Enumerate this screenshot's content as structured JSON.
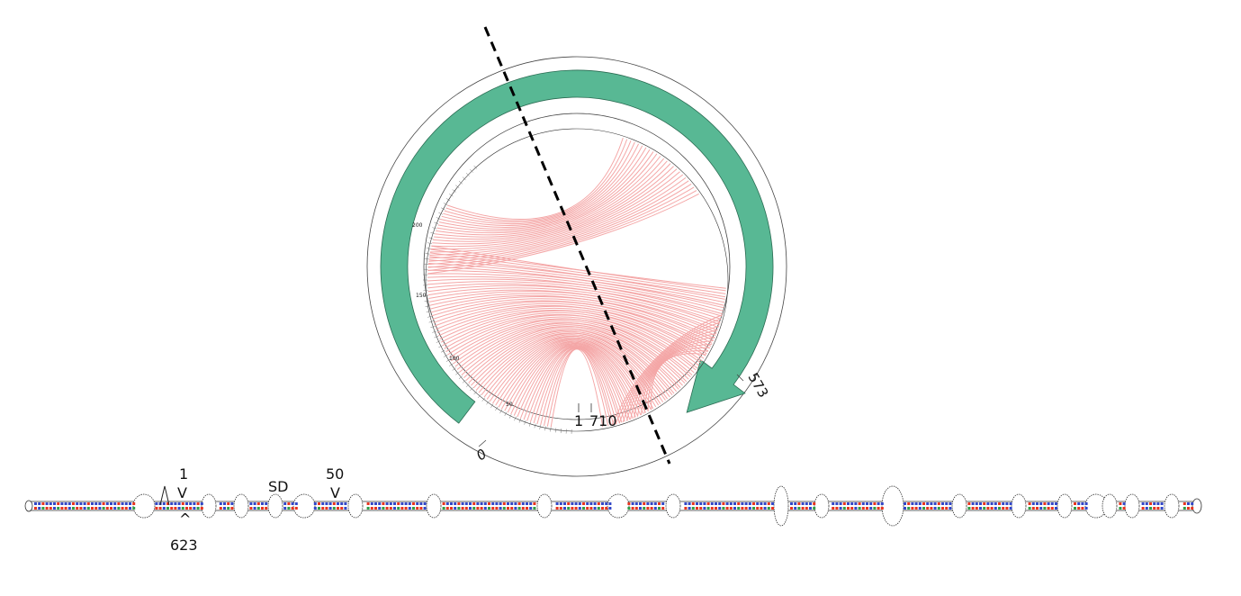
{
  "circle_diagram": {
    "outer_ring_labels": {
      "start": "0",
      "end": "573"
    },
    "inner_ticks": [
      "50",
      "100",
      "150",
      "200"
    ],
    "bottom_labels": {
      "first": "1",
      "last": "710"
    },
    "colors": {
      "arrow": "#58b894",
      "arc": "#f4a6a6",
      "ring": "#444444",
      "cut_line": "#000000"
    }
  },
  "linear_structure": {
    "markers": {
      "one": "1",
      "one_caret": "V",
      "six_two_three": "623",
      "six_two_three_caret": "^",
      "sd": "SD",
      "fifty": "50",
      "fifty_caret": "V"
    },
    "colors": {
      "red": "#e8331f",
      "blue": "#3247c8",
      "green": "#2f9e46"
    }
  }
}
